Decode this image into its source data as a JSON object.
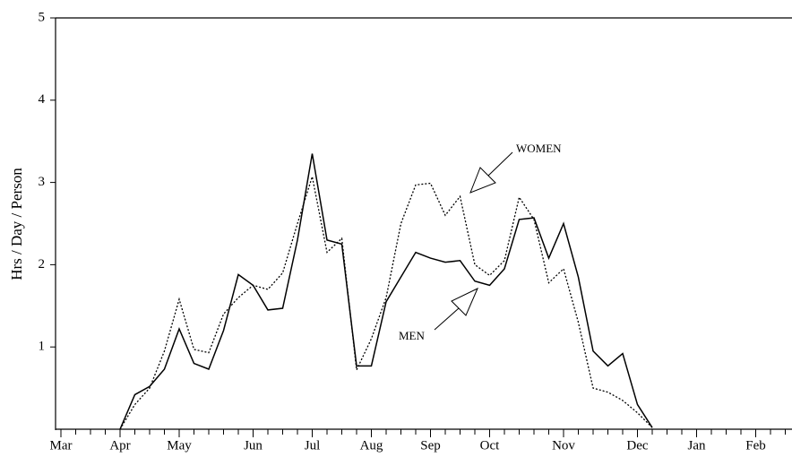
{
  "chart_data": {
    "type": "line",
    "y_label": "Hrs / Day / Person",
    "categories": [
      "Mar",
      null,
      null,
      null,
      "Apr",
      null,
      null,
      null,
      "May",
      null,
      null,
      null,
      null,
      "Jun",
      null,
      null,
      null,
      "Jul",
      null,
      null,
      null,
      "Aug",
      null,
      null,
      null,
      "Sep",
      null,
      null,
      null,
      "Oct",
      null,
      null,
      null,
      null,
      "Nov",
      null,
      null,
      null,
      null,
      "Dec",
      null,
      null,
      null,
      "Jan",
      null,
      null,
      null,
      "Feb",
      null,
      null
    ],
    "series": [
      {
        "name": "MEN",
        "color": "#000000",
        "dash": "solid",
        "values": [
          null,
          null,
          null,
          null,
          0,
          0.42,
          0.52,
          0.73,
          1.22,
          0.8,
          0.73,
          1.2,
          1.88,
          1.75,
          1.45,
          1.47,
          2.3,
          3.35,
          2.3,
          2.25,
          0.77,
          0.77,
          1.55,
          1.85,
          2.15,
          2.08,
          2.03,
          2.05,
          1.8,
          1.75,
          1.95,
          2.55,
          2.57,
          2.08,
          2.5,
          1.85,
          0.95,
          0.77,
          0.92,
          0.3,
          0.02,
          null,
          null,
          null,
          null,
          null,
          null,
          null,
          null,
          null
        ]
      },
      {
        "name": "WOMEN",
        "color": "#000000",
        "dash": "dotted",
        "values": [
          null,
          null,
          null,
          null,
          0,
          0.3,
          0.5,
          0.95,
          1.58,
          0.97,
          0.93,
          1.4,
          1.6,
          1.75,
          1.7,
          1.9,
          2.5,
          3.07,
          2.15,
          2.32,
          0.72,
          1.1,
          1.6,
          2.5,
          2.97,
          2.99,
          2.6,
          2.83,
          2.0,
          1.87,
          2.05,
          2.82,
          2.55,
          1.78,
          1.95,
          1.3,
          0.5,
          0.45,
          0.35,
          0.2,
          0.02,
          null,
          null,
          null,
          null,
          null,
          null,
          null,
          null,
          null
        ]
      }
    ],
    "ylim": [
      0,
      5
    ],
    "yticks": [
      1,
      2,
      3,
      4,
      5
    ],
    "grid": false
  }
}
